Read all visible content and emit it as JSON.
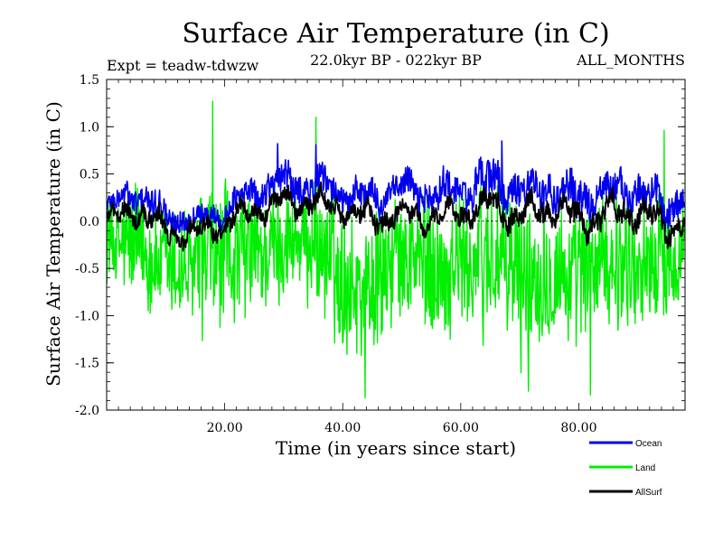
{
  "chart_data": {
    "type": "line",
    "title": "Surface Air Temperature (in C)",
    "subtitle": "22.0kyr BP - 022kyr BP",
    "experiment_label": "Expt = teadw-tdwzw",
    "months_label": "ALL_MONTHS",
    "xlabel": "Time (in years since start)",
    "ylabel": "Surface Air Temperature (in C)",
    "xlim": [
      0,
      98
    ],
    "ylim": [
      -2.0,
      1.5
    ],
    "xticks": [
      20,
      40,
      60,
      80
    ],
    "xtick_labels": [
      "20.00",
      "40.00",
      "60.00",
      "80.00"
    ],
    "yticks": [
      -2.0,
      -1.5,
      -1.0,
      -0.5,
      0.0,
      0.5,
      1.0,
      1.5
    ],
    "ytick_labels": [
      "-2.0",
      "-1.5",
      "-1.0",
      "-0.5",
      "0.0",
      "0.5",
      "1.0",
      "1.5"
    ],
    "zero_line": true,
    "legend_position": "bottom-right, outside plot",
    "sample_interval_years": 0.08333,
    "series": [
      {
        "name": "Land",
        "color": "#00ee00",
        "envelope": {
          "x": [
            0,
            5,
            10,
            15,
            20,
            25,
            30,
            35,
            40,
            45,
            50,
            55,
            60,
            65,
            70,
            75,
            80,
            85,
            90,
            95,
            98
          ],
          "upper": [
            0.4,
            0.5,
            0.2,
            0.3,
            0.5,
            0.5,
            0.6,
            0.6,
            0.3,
            0.2,
            0.5,
            0.4,
            0.4,
            0.6,
            0.5,
            0.3,
            0.4,
            0.4,
            0.3,
            0.5,
            0.5
          ],
          "lower": [
            -0.8,
            -1.1,
            -1.2,
            -1.4,
            -1.3,
            -1.2,
            -1.0,
            -1.0,
            -1.6,
            -1.6,
            -1.2,
            -1.4,
            -1.3,
            -1.4,
            -1.7,
            -1.4,
            -1.6,
            -1.2,
            -1.3,
            -1.3,
            -1.0
          ]
        },
        "peaks": [
          {
            "x": 18.0,
            "y": 1.27
          },
          {
            "x": 35.5,
            "y": 1.1
          },
          {
            "x": 94.5,
            "y": 0.96
          },
          {
            "x": 43.8,
            "y": -1.87
          },
          {
            "x": 71.5,
            "y": -1.8
          },
          {
            "x": 82.0,
            "y": -1.84
          }
        ]
      },
      {
        "name": "Ocean",
        "color": "#0000ee",
        "envelope": {
          "x": [
            0,
            5,
            10,
            15,
            20,
            25,
            30,
            35,
            40,
            45,
            50,
            55,
            60,
            65,
            70,
            75,
            80,
            85,
            90,
            95,
            98
          ],
          "upper": [
            0.3,
            0.55,
            0.3,
            0.2,
            0.3,
            0.55,
            0.7,
            0.65,
            0.55,
            0.5,
            0.6,
            0.55,
            0.6,
            0.75,
            0.6,
            0.65,
            0.55,
            0.6,
            0.6,
            0.45,
            0.6
          ],
          "lower": [
            0.0,
            0.05,
            -0.2,
            -0.15,
            -0.1,
            0.1,
            0.1,
            0.1,
            0.05,
            -0.05,
            0.1,
            0.0,
            0.05,
            0.1,
            0.0,
            0.05,
            -0.1,
            0.05,
            0.05,
            -0.15,
            0.0
          ]
        },
        "peaks": [
          {
            "x": 29.0,
            "y": 0.82
          },
          {
            "x": 35.5,
            "y": 0.81
          },
          {
            "x": 67.0,
            "y": 0.85
          }
        ]
      },
      {
        "name": "AllSurf",
        "color": "#000000",
        "envelope": {
          "x": [
            0,
            5,
            10,
            15,
            20,
            25,
            30,
            35,
            40,
            45,
            50,
            55,
            60,
            65,
            70,
            75,
            80,
            85,
            90,
            95,
            98
          ],
          "upper": [
            0.2,
            0.4,
            0.15,
            0.1,
            0.2,
            0.35,
            0.45,
            0.45,
            0.35,
            0.3,
            0.3,
            0.25,
            0.35,
            0.45,
            0.35,
            0.45,
            0.3,
            0.4,
            0.4,
            0.2,
            0.3
          ],
          "lower": [
            -0.2,
            -0.15,
            -0.35,
            -0.35,
            -0.25,
            -0.1,
            -0.05,
            -0.05,
            -0.1,
            -0.25,
            -0.15,
            -0.2,
            -0.15,
            -0.1,
            -0.25,
            -0.15,
            -0.35,
            -0.2,
            -0.2,
            -0.35,
            -0.2
          ]
        },
        "peaks": []
      }
    ]
  }
}
